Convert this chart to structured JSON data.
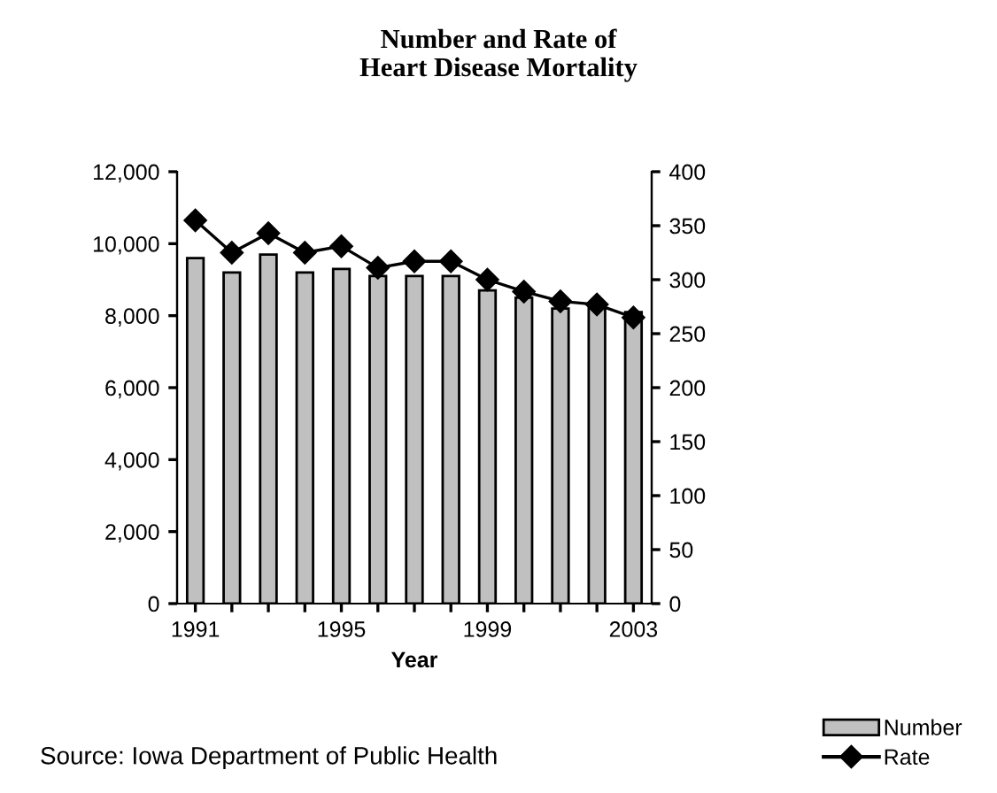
{
  "chart_data": {
    "type": "bar",
    "title": "Number and Rate of\nHeart Disease Mortality",
    "xlabel": "Year",
    "categories": [
      "1991",
      null,
      null,
      null,
      "1995",
      null,
      null,
      null,
      "1999",
      null,
      null,
      null,
      "2003"
    ],
    "series": [
      {
        "name": "Number",
        "color": "#c0c0c0",
        "values": [
          9600,
          9200,
          9700,
          9200,
          9300,
          9100,
          9100,
          9100,
          8700,
          8500,
          8200,
          8200,
          8100
        ]
      },
      {
        "name": "Rate",
        "type": "line",
        "axis": "y2",
        "color": "#000000",
        "marker": "diamond",
        "values": [
          355,
          325,
          343,
          325,
          331,
          311,
          317,
          317,
          300,
          289,
          280,
          277,
          265
        ]
      }
    ],
    "ylim": [
      0,
      12000
    ],
    "yticks": [
      {
        "value": 0,
        "label": "0"
      },
      {
        "value": 2000,
        "label": "2,000"
      },
      {
        "value": 4000,
        "label": "4,000"
      },
      {
        "value": 6000,
        "label": "6,000"
      },
      {
        "value": 8000,
        "label": "8,000"
      },
      {
        "value": 10000,
        "label": "10,000"
      },
      {
        "value": 12000,
        "label": "12,000"
      }
    ],
    "y2lim": [
      0,
      400
    ],
    "y2ticks": [
      0,
      50,
      100,
      150,
      200,
      250,
      300,
      350,
      400
    ],
    "grid": false,
    "legend": "bottom right",
    "annotations": [
      "Source: Iowa Department of Public Health"
    ]
  }
}
